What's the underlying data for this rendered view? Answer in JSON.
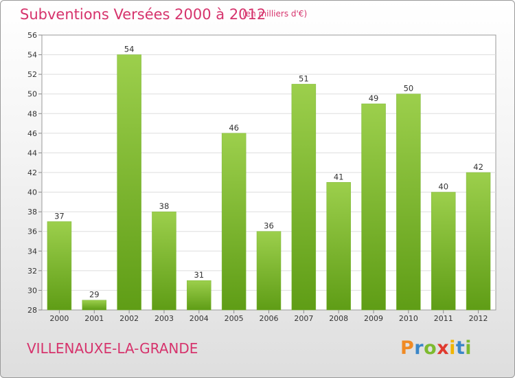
{
  "header": {
    "title": "Subventions Versées 2000 à 2012",
    "unit": "(en milliers d'€)"
  },
  "footer": {
    "place": "VILLENAUXE-LA-GRANDE",
    "logo": "Proxiti"
  },
  "colors": {
    "title": "#d6336c",
    "bar_light": "#9ccf4c",
    "bar_dark": "#5f9d16",
    "logo_letters": [
      "#f08a24",
      "#3a86c8",
      "#7dba2f",
      "#e03a2f",
      "#f0b400",
      "#3a86c8",
      "#7dba2f"
    ]
  },
  "chart_data": {
    "type": "bar",
    "title": "Subventions Versées 2000 à 2012",
    "xlabel": "",
    "ylabel": "",
    "categories": [
      "2000",
      "2001",
      "2002",
      "2003",
      "2004",
      "2005",
      "2006",
      "2007",
      "2008",
      "2009",
      "2010",
      "2011",
      "2012"
    ],
    "values": [
      37,
      29,
      54,
      38,
      31,
      46,
      36,
      51,
      41,
      49,
      50,
      40,
      42
    ],
    "ylim": [
      28,
      56
    ],
    "yticks": [
      28,
      30,
      32,
      34,
      36,
      38,
      40,
      42,
      44,
      46,
      48,
      50,
      52,
      54,
      56
    ],
    "grid": true,
    "data_labels": true
  }
}
